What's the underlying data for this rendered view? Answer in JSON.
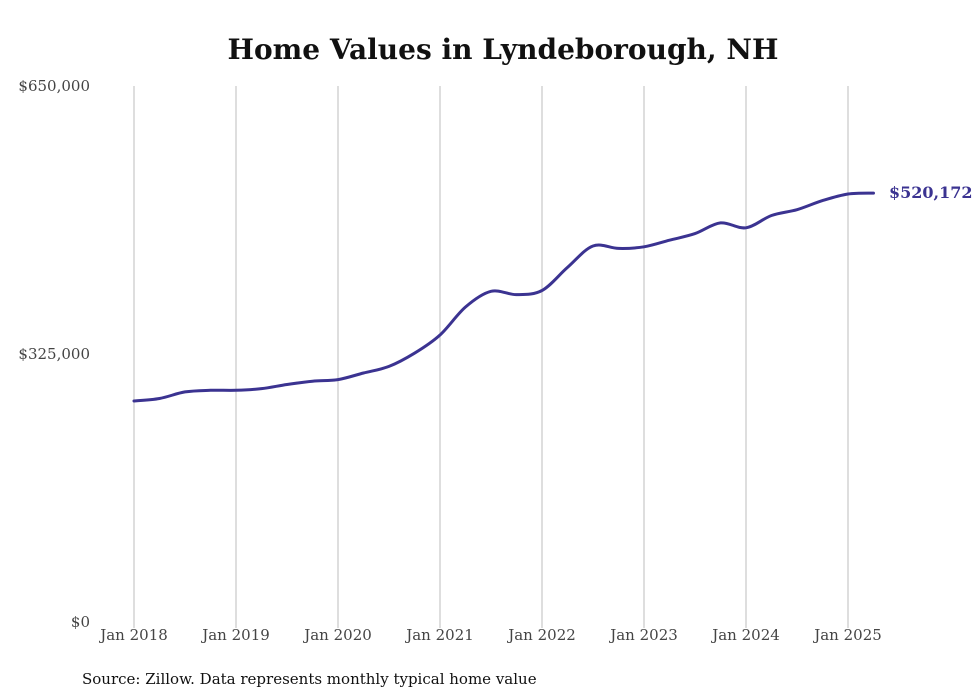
{
  "chart_data": {
    "type": "line",
    "title": "Home Values in Lyndeborough, NH",
    "xlabel": "",
    "ylabel": "",
    "source": "Source: Zillow. Data represents monthly typical home value",
    "ylim": [
      0,
      650000
    ],
    "yticks": [
      {
        "value": 0,
        "label": "$0"
      },
      {
        "value": 325000,
        "label": "$325,000"
      },
      {
        "value": 650000,
        "label": "$650,000"
      }
    ],
    "xticks": [
      {
        "value": "2018-01",
        "label": "Jan 2018"
      },
      {
        "value": "2019-01",
        "label": "Jan 2019"
      },
      {
        "value": "2020-01",
        "label": "Jan 2020"
      },
      {
        "value": "2021-01",
        "label": "Jan 2021"
      },
      {
        "value": "2022-01",
        "label": "Jan 2022"
      },
      {
        "value": "2023-01",
        "label": "Jan 2023"
      },
      {
        "value": "2024-01",
        "label": "Jan 2024"
      },
      {
        "value": "2025-01",
        "label": "Jan 2025"
      }
    ],
    "grid": "vertical",
    "line_color": "#3b3391",
    "end_label": "$520,172",
    "series": [
      {
        "points": [
          [
            "2018-01",
            268000
          ],
          [
            "2018-04",
            271000
          ],
          [
            "2018-07",
            279000
          ],
          [
            "2018-10",
            281000
          ],
          [
            "2019-01",
            281000
          ],
          [
            "2019-04",
            283000
          ],
          [
            "2019-07",
            288000
          ],
          [
            "2019-10",
            292000
          ],
          [
            "2020-01",
            294000
          ],
          [
            "2020-04",
            302000
          ],
          [
            "2020-07",
            310000
          ],
          [
            "2020-10",
            326000
          ],
          [
            "2021-01",
            348000
          ],
          [
            "2021-04",
            382000
          ],
          [
            "2021-07",
            401000
          ],
          [
            "2021-10",
            397000
          ],
          [
            "2022-01",
            402000
          ],
          [
            "2022-04",
            430000
          ],
          [
            "2022-07",
            456000
          ],
          [
            "2022-10",
            453000
          ],
          [
            "2023-01",
            455000
          ],
          [
            "2023-04",
            463000
          ],
          [
            "2023-07",
            471000
          ],
          [
            "2023-10",
            484000
          ],
          [
            "2024-01",
            478000
          ],
          [
            "2024-04",
            493000
          ],
          [
            "2024-07",
            500000
          ],
          [
            "2024-10",
            511000
          ],
          [
            "2025-01",
            519000
          ],
          [
            "2025-04",
            520172
          ]
        ]
      }
    ]
  }
}
